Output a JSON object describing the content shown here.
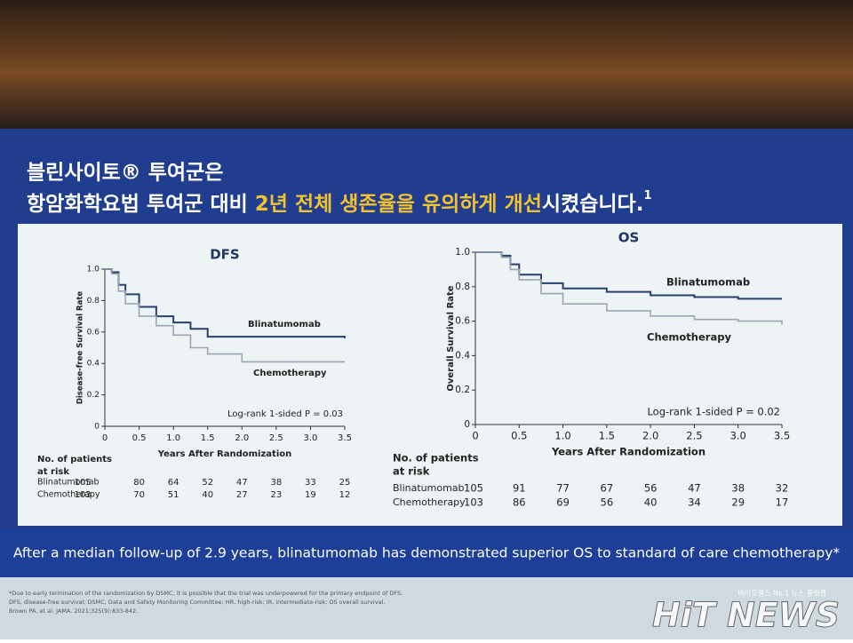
{
  "slide_title": {
    "line1": "블린사이토® 투여군은",
    "line2_start": "항암화학요법 투여군 대비 ",
    "line2_highlight": "2년 전체 생존율을 유의하게 개선",
    "line2_end": "시켰습니다.",
    "superscript": "1"
  },
  "chart_data": [
    {
      "type": "step",
      "title": "DFS",
      "y_label": "Disease-free Survival Rate",
      "x_label": "Years After Randomization",
      "annotation": "Log-rank 1-sided P = 0.03",
      "xlim": [
        0,
        3.5
      ],
      "xticks": [
        0,
        0.5,
        {
          "value": 1,
          "label": "1.0"
        },
        1.5,
        {
          "value": 2,
          "label": "2.0"
        },
        2.5,
        {
          "value": 3,
          "label": "3.0"
        },
        3.5
      ],
      "ylim": [
        0,
        1
      ],
      "yticks": [
        0,
        0.2,
        0.4,
        0.6,
        0.8,
        {
          "value": 1,
          "label": "1.0"
        }
      ],
      "x": [
        0,
        0.1,
        0.2,
        0.3,
        0.5,
        0.75,
        1,
        1.25,
        1.5,
        2,
        2.5,
        3,
        3.5
      ],
      "series": [
        {
          "name": "Blinatumomab",
          "color": "#27406e",
          "values": [
            1.0,
            0.98,
            0.9,
            0.84,
            0.76,
            0.7,
            0.66,
            0.62,
            0.57,
            0.57,
            0.57,
            0.57,
            0.56
          ]
        },
        {
          "name": "Chemotherapy",
          "color": "#9aa6b4",
          "values": [
            1.0,
            0.97,
            0.86,
            0.78,
            0.7,
            0.64,
            0.58,
            0.5,
            0.46,
            0.41,
            0.41,
            0.41,
            0.41
          ]
        }
      ],
      "risk_table": {
        "header": [
          "No. of patients",
          "at risk"
        ],
        "rows": [
          {
            "name": "Blinatumomab",
            "values": [
              105,
              80,
              64,
              52,
              47,
              38,
              33,
              25
            ]
          },
          {
            "name": "Chemotherapy",
            "values": [
              103,
              70,
              51,
              40,
              27,
              23,
              19,
              12
            ]
          }
        ]
      }
    },
    {
      "type": "step",
      "title": "OS",
      "y_label": "Overall Survival Rate",
      "x_label": "Years After Randomization",
      "annotation": "Log-rank 1-sided P = 0.02",
      "xlim": [
        0,
        3.5
      ],
      "xticks": [
        0,
        0.5,
        {
          "value": 1,
          "label": "1.0"
        },
        1.5,
        {
          "value": 2,
          "label": "2.0"
        },
        2.5,
        {
          "value": 3,
          "label": "3.0"
        },
        3.5
      ],
      "ylim": [
        0,
        1
      ],
      "yticks": [
        0,
        0.2,
        0.4,
        0.6,
        0.8,
        {
          "value": 1,
          "label": "1.0"
        }
      ],
      "x": [
        0,
        0.3,
        0.4,
        0.5,
        0.75,
        1,
        1.5,
        2,
        2.5,
        3,
        3.5
      ],
      "series": [
        {
          "name": "Blinatumomab",
          "color": "#27406e",
          "values": [
            1.0,
            0.98,
            0.93,
            0.87,
            0.82,
            0.79,
            0.77,
            0.75,
            0.74,
            0.73,
            0.73
          ]
        },
        {
          "name": "Chemotherapy",
          "color": "#9aa6b4",
          "values": [
            1.0,
            0.97,
            0.9,
            0.84,
            0.76,
            0.7,
            0.66,
            0.63,
            0.61,
            0.6,
            0.58
          ]
        }
      ],
      "risk_table": {
        "header": [
          "No. of patients",
          "at risk"
        ],
        "rows": [
          {
            "name": "Blinatumomab",
            "values": [
              105,
              91,
              77,
              67,
              56,
              47,
              38,
              32
            ]
          },
          {
            "name": "Chemotherapy",
            "values": [
              103,
              86,
              69,
              56,
              40,
              34,
              29,
              17
            ]
          }
        ]
      }
    }
  ],
  "banner": "After a median follow-up of 2.9 years, blinatumomab has demonstrated superior OS to standard of care chemotherapy*",
  "footnotes": [
    "*Due to early termination of the randomization by DSMC, it is possible that the trial was underpowered for the primary endpoint of DFS.",
    "DFS, disease-free survival; DSMC, Data and Safety Monitoring Committee; HR, high-risk; IR, intermediate-risk; OS overall survival.",
    "Brown PA, et al. JAMA. 2021;325(9):833-842."
  ],
  "watermark": {
    "tagline": "바이오헬스 No.1 뉴스 플랫폼",
    "brand": "HiT NEWS"
  }
}
